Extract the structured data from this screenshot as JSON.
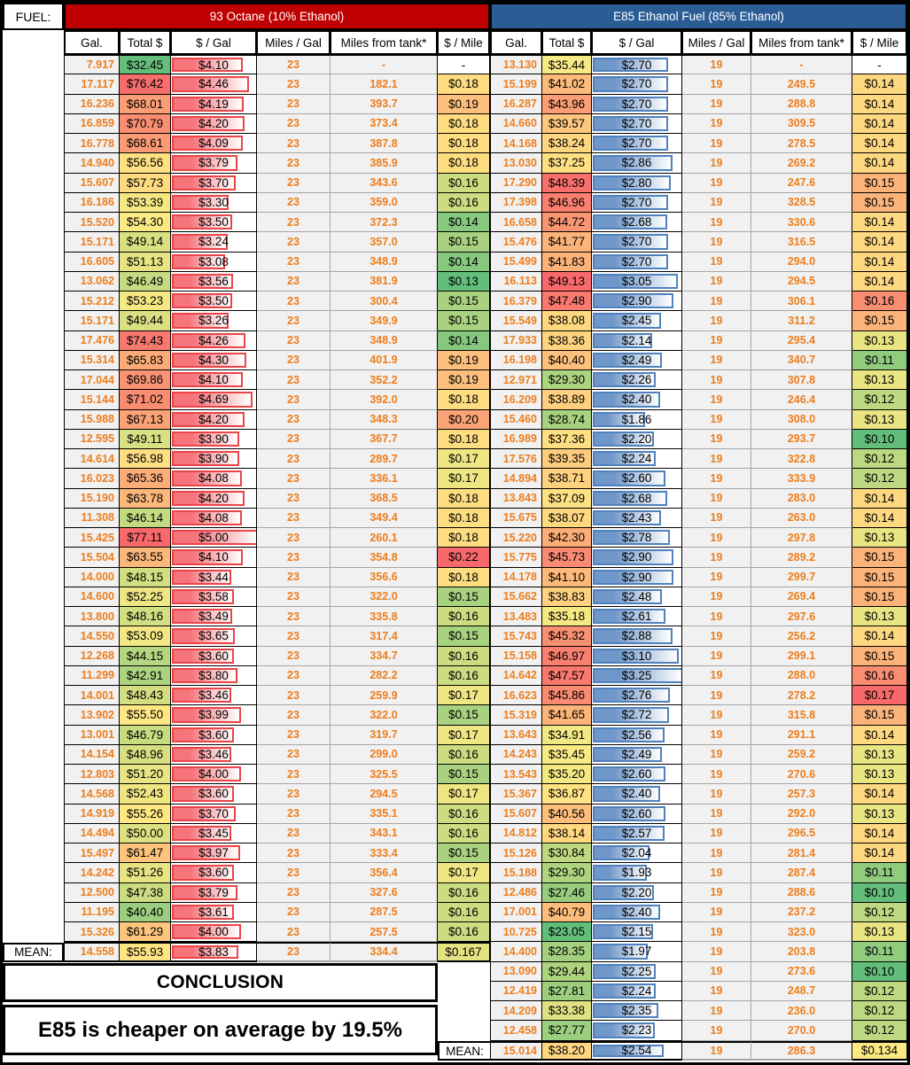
{
  "colors": {
    "octane_header_bg": "#C00000",
    "e85_header_bg": "#2B5D94",
    "orange_text": "#ED7D1C",
    "gray_cell_bg": "#F1F1F1",
    "scale_stops": [
      "#63BE7B",
      "#FFEB84",
      "#F8696B"
    ],
    "red_bar_fill": "#F5757B",
    "red_bar_border": "#EA4449",
    "blue_bar_fill": "#7097C9",
    "blue_bar_border": "#4F81BD"
  },
  "corner": {
    "fuel_label": "FUEL:"
  },
  "conclusion": {
    "heading": "CONCLUSION",
    "text": "E85 is cheaper on average by 19.5%"
  },
  "left_table": {
    "header": "93 Octane (10% Ethanol)",
    "columns": [
      "Gal.",
      "Total $",
      "$ / Gal",
      "Miles  / Gal",
      "Miles from tank*",
      "$ / Mile"
    ],
    "mean_label": "MEAN:",
    "rows": [
      [
        "7.917",
        "$32.45",
        "$4.10",
        "23",
        "-",
        "-"
      ],
      [
        "17.117",
        "$76.42",
        "$4.46",
        "23",
        "182.1",
        "$0.18"
      ],
      [
        "16.236",
        "$68.01",
        "$4.19",
        "23",
        "393.7",
        "$0.19"
      ],
      [
        "16.859",
        "$70.79",
        "$4.20",
        "23",
        "373.4",
        "$0.18"
      ],
      [
        "16.778",
        "$68.61",
        "$4.09",
        "23",
        "387.8",
        "$0.18"
      ],
      [
        "14.940",
        "$56.56",
        "$3.79",
        "23",
        "385.9",
        "$0.18"
      ],
      [
        "15.607",
        "$57.73",
        "$3.70",
        "23",
        "343.6",
        "$0.16"
      ],
      [
        "16.186",
        "$53.39",
        "$3.30",
        "23",
        "359.0",
        "$0.16"
      ],
      [
        "15.520",
        "$54.30",
        "$3.50",
        "23",
        "372.3",
        "$0.14"
      ],
      [
        "15.171",
        "$49.14",
        "$3.24",
        "23",
        "357.0",
        "$0.15"
      ],
      [
        "16.605",
        "$51.13",
        "$3.08",
        "23",
        "348.9",
        "$0.14"
      ],
      [
        "13.062",
        "$46.49",
        "$3.56",
        "23",
        "381.9",
        "$0.13"
      ],
      [
        "15.212",
        "$53.23",
        "$3.50",
        "23",
        "300.4",
        "$0.15"
      ],
      [
        "15.171",
        "$49.44",
        "$3.26",
        "23",
        "349.9",
        "$0.15"
      ],
      [
        "17.476",
        "$74.43",
        "$4.26",
        "23",
        "348.9",
        "$0.14"
      ],
      [
        "15.314",
        "$65.83",
        "$4.30",
        "23",
        "401.9",
        "$0.19"
      ],
      [
        "17.044",
        "$69.86",
        "$4.10",
        "23",
        "352.2",
        "$0.19"
      ],
      [
        "15.144",
        "$71.02",
        "$4.69",
        "23",
        "392.0",
        "$0.18"
      ],
      [
        "15.988",
        "$67.13",
        "$4.20",
        "23",
        "348.3",
        "$0.20"
      ],
      [
        "12.595",
        "$49.11",
        "$3.90",
        "23",
        "367.7",
        "$0.18"
      ],
      [
        "14.614",
        "$56.98",
        "$3.90",
        "23",
        "289.7",
        "$0.17"
      ],
      [
        "16.023",
        "$65.36",
        "$4.08",
        "23",
        "336.1",
        "$0.17"
      ],
      [
        "15.190",
        "$63.78",
        "$4.20",
        "23",
        "368.5",
        "$0.18"
      ],
      [
        "11.308",
        "$46.14",
        "$4.08",
        "23",
        "349.4",
        "$0.18"
      ],
      [
        "15.425",
        "$77.11",
        "$5.00",
        "23",
        "260.1",
        "$0.18"
      ],
      [
        "15.504",
        "$63.55",
        "$4.10",
        "23",
        "354.8",
        "$0.22"
      ],
      [
        "14.000",
        "$48.15",
        "$3.44",
        "23",
        "356.6",
        "$0.18"
      ],
      [
        "14.600",
        "$52.25",
        "$3.58",
        "23",
        "322.0",
        "$0.15"
      ],
      [
        "13.800",
        "$48.16",
        "$3.49",
        "23",
        "335.8",
        "$0.16"
      ],
      [
        "14.550",
        "$53.09",
        "$3.65",
        "23",
        "317.4",
        "$0.15"
      ],
      [
        "12.268",
        "$44.15",
        "$3.60",
        "23",
        "334.7",
        "$0.16"
      ],
      [
        "11.299",
        "$42.91",
        "$3.80",
        "23",
        "282.2",
        "$0.16"
      ],
      [
        "14.001",
        "$48.43",
        "$3.46",
        "23",
        "259.9",
        "$0.17"
      ],
      [
        "13.902",
        "$55.50",
        "$3.99",
        "23",
        "322.0",
        "$0.15"
      ],
      [
        "13.001",
        "$46.79",
        "$3.60",
        "23",
        "319.7",
        "$0.17"
      ],
      [
        "14.154",
        "$48.96",
        "$3.46",
        "23",
        "299.0",
        "$0.16"
      ],
      [
        "12.803",
        "$51.20",
        "$4.00",
        "23",
        "325.5",
        "$0.15"
      ],
      [
        "14.568",
        "$52.43",
        "$3.60",
        "23",
        "294.5",
        "$0.17"
      ],
      [
        "14.919",
        "$55.26",
        "$3.70",
        "23",
        "335.1",
        "$0.16"
      ],
      [
        "14.494",
        "$50.00",
        "$3.45",
        "23",
        "343.1",
        "$0.16"
      ],
      [
        "15.497",
        "$61.47",
        "$3.97",
        "23",
        "333.4",
        "$0.15"
      ],
      [
        "14.242",
        "$51.26",
        "$3.60",
        "23",
        "356.4",
        "$0.17"
      ],
      [
        "12.500",
        "$47.38",
        "$3.79",
        "23",
        "327.6",
        "$0.16"
      ],
      [
        "11.195",
        "$40.40",
        "$3.61",
        "23",
        "287.5",
        "$0.16"
      ],
      [
        "15.326",
        "$61.29",
        "$4.00",
        "23",
        "257.5",
        "$0.16"
      ]
    ],
    "mean_row": [
      "14.558",
      "$55.93",
      "$3.83",
      "23",
      "334.4",
      "$0.167"
    ]
  },
  "right_table": {
    "header": "E85 Ethanol Fuel (85% Ethanol)",
    "columns": [
      "Gal.",
      "Total $",
      "$ / Gal",
      "Miles  / Gal",
      "Miles from tank*",
      "$ / Mile"
    ],
    "mean_label": "MEAN:",
    "rows": [
      [
        "13.130",
        "$35.44",
        "$2.70",
        "19",
        "-",
        "-"
      ],
      [
        "15.199",
        "$41.02",
        "$2.70",
        "19",
        "249.5",
        "$0.14"
      ],
      [
        "16.287",
        "$43.96",
        "$2.70",
        "19",
        "288.8",
        "$0.14"
      ],
      [
        "14.660",
        "$39.57",
        "$2.70",
        "19",
        "309.5",
        "$0.14"
      ],
      [
        "14.168",
        "$38.24",
        "$2.70",
        "19",
        "278.5",
        "$0.14"
      ],
      [
        "13.030",
        "$37.25",
        "$2.86",
        "19",
        "269.2",
        "$0.14"
      ],
      [
        "17.290",
        "$48.39",
        "$2.80",
        "19",
        "247.6",
        "$0.15"
      ],
      [
        "17.398",
        "$46.96",
        "$2.70",
        "19",
        "328.5",
        "$0.15"
      ],
      [
        "16.658",
        "$44.72",
        "$2.68",
        "19",
        "330.6",
        "$0.14"
      ],
      [
        "15.476",
        "$41.77",
        "$2.70",
        "19",
        "316.5",
        "$0.14"
      ],
      [
        "15.499",
        "$41.83",
        "$2.70",
        "19",
        "294.0",
        "$0.14"
      ],
      [
        "16.113",
        "$49.13",
        "$3.05",
        "19",
        "294.5",
        "$0.14"
      ],
      [
        "16.379",
        "$47.48",
        "$2.90",
        "19",
        "306.1",
        "$0.16"
      ],
      [
        "15.549",
        "$38.08",
        "$2.45",
        "19",
        "311.2",
        "$0.15"
      ],
      [
        "17.933",
        "$38.36",
        "$2.14",
        "19",
        "295.4",
        "$0.13"
      ],
      [
        "16.198",
        "$40.40",
        "$2.49",
        "19",
        "340.7",
        "$0.11"
      ],
      [
        "12.971",
        "$29.30",
        "$2.26",
        "19",
        "307.8",
        "$0.13"
      ],
      [
        "16.209",
        "$38.89",
        "$2.40",
        "19",
        "246.4",
        "$0.12"
      ],
      [
        "15.460",
        "$28.74",
        "$1.86",
        "19",
        "308.0",
        "$0.13"
      ],
      [
        "16.989",
        "$37.36",
        "$2.20",
        "19",
        "293.7",
        "$0.10"
      ],
      [
        "17.576",
        "$39.35",
        "$2.24",
        "19",
        "322.8",
        "$0.12"
      ],
      [
        "14.894",
        "$38.71",
        "$2.60",
        "19",
        "333.9",
        "$0.12"
      ],
      [
        "13.843",
        "$37.09",
        "$2.68",
        "19",
        "283.0",
        "$0.14"
      ],
      [
        "15.675",
        "$38.07",
        "$2.43",
        "19",
        "263.0",
        "$0.14"
      ],
      [
        "15.220",
        "$42.30",
        "$2.78",
        "19",
        "297.8",
        "$0.13"
      ],
      [
        "15.775",
        "$45.73",
        "$2.90",
        "19",
        "289.2",
        "$0.15"
      ],
      [
        "14.178",
        "$41.10",
        "$2.90",
        "19",
        "299.7",
        "$0.15"
      ],
      [
        "15.662",
        "$38.83",
        "$2.48",
        "19",
        "269.4",
        "$0.15"
      ],
      [
        "13.483",
        "$35.18",
        "$2.61",
        "19",
        "297.6",
        "$0.13"
      ],
      [
        "15.743",
        "$45.32",
        "$2.88",
        "19",
        "256.2",
        "$0.14"
      ],
      [
        "15.158",
        "$46.97",
        "$3.10",
        "19",
        "299.1",
        "$0.15"
      ],
      [
        "14.642",
        "$47.57",
        "$3.25",
        "19",
        "288.0",
        "$0.16"
      ],
      [
        "16.623",
        "$45.86",
        "$2.76",
        "19",
        "278.2",
        "$0.17"
      ],
      [
        "15.319",
        "$41.65",
        "$2.72",
        "19",
        "315.8",
        "$0.15"
      ],
      [
        "13.643",
        "$34.91",
        "$2.56",
        "19",
        "291.1",
        "$0.14"
      ],
      [
        "14.243",
        "$35.45",
        "$2.49",
        "19",
        "259.2",
        "$0.13"
      ],
      [
        "13.543",
        "$35.20",
        "$2.60",
        "19",
        "270.6",
        "$0.13"
      ],
      [
        "15.367",
        "$36.87",
        "$2.40",
        "19",
        "257.3",
        "$0.14"
      ],
      [
        "15.607",
        "$40.56",
        "$2.60",
        "19",
        "292.0",
        "$0.13"
      ],
      [
        "14.812",
        "$38.14",
        "$2.57",
        "19",
        "296.5",
        "$0.14"
      ],
      [
        "15.126",
        "$30.84",
        "$2.04",
        "19",
        "281.4",
        "$0.14"
      ],
      [
        "15.188",
        "$29.30",
        "$1.93",
        "19",
        "287.4",
        "$0.11"
      ],
      [
        "12.486",
        "$27.46",
        "$2.20",
        "19",
        "288.6",
        "$0.10"
      ],
      [
        "17.001",
        "$40.79",
        "$2.40",
        "19",
        "237.2",
        "$0.12"
      ],
      [
        "10.725",
        "$23.05",
        "$2.15",
        "19",
        "323.0",
        "$0.13"
      ],
      [
        "14.400",
        "$28.35",
        "$1.97",
        "19",
        "203.8",
        "$0.11"
      ],
      [
        "13.090",
        "$29.44",
        "$2.25",
        "19",
        "273.6",
        "$0.10"
      ],
      [
        "12.419",
        "$27.81",
        "$2.24",
        "19",
        "248.7",
        "$0.12"
      ],
      [
        "14.209",
        "$33.38",
        "$2.35",
        "19",
        "236.0",
        "$0.12"
      ],
      [
        "12.458",
        "$27.77",
        "$2.23",
        "19",
        "270.0",
        "$0.12"
      ]
    ],
    "mean_row": [
      "15.014",
      "$38.20",
      "$2.54",
      "19",
      "286.3",
      "$0.134"
    ]
  }
}
